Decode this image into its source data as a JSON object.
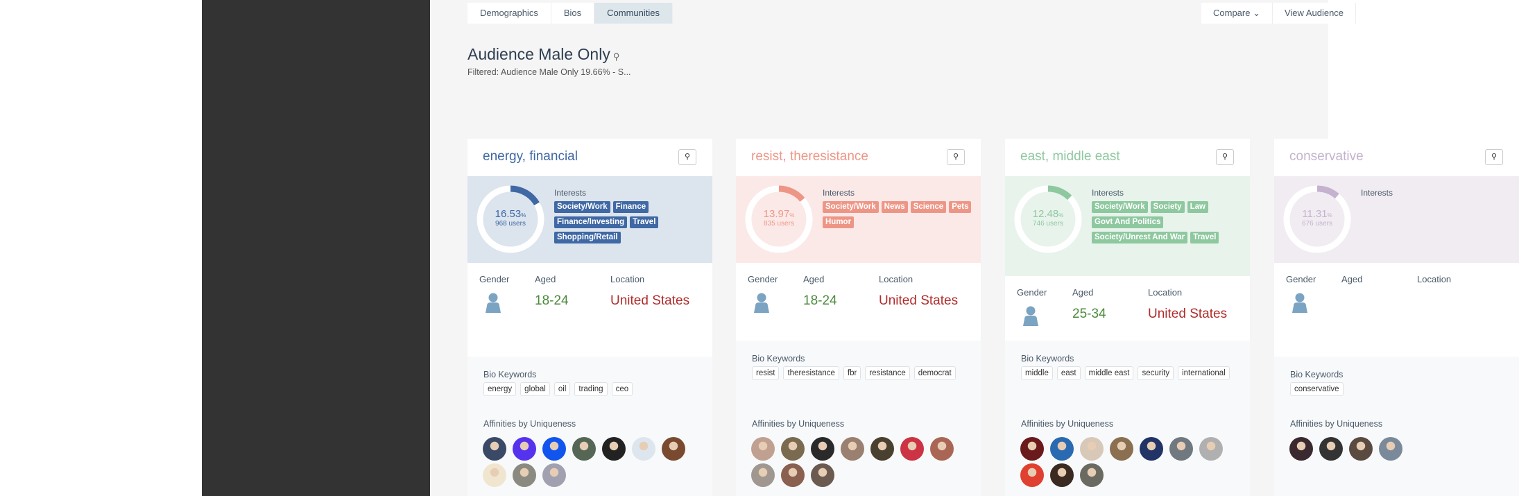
{
  "tabs": [
    {
      "label": "Demographics"
    },
    {
      "label": "Bios"
    },
    {
      "label": "Communities",
      "active": true
    }
  ],
  "actions": {
    "compare": "Compare ⌄",
    "view": "View Audience"
  },
  "header": {
    "title": "Audience Male Only",
    "title_icon": "zoom-icon",
    "subtitle": "Filtered: Audience Male Only 19.66% - S..."
  },
  "labels": {
    "interests": "Interests",
    "gender": "Gender",
    "aged": "Aged",
    "location": "Location",
    "bio": "Bio Keywords",
    "affinities": "Affinities by Uniqueness",
    "pct_unit": "%",
    "zoom": "⚲"
  },
  "colors": {
    "aged": "#4a8a3a",
    "location": "#b22c2c",
    "gender_icon": "#7ba3c2"
  },
  "cards": [
    {
      "title": "energy, financial",
      "accent": "#3f68a4",
      "band": "#dce4ee",
      "percent": 16.53,
      "percent_label": "16.53",
      "users": "968 users",
      "interests": [
        "Society/Work",
        "Finance",
        "Finance/Investing",
        "Travel",
        "Shopping/Retail"
      ],
      "aged": "18-24",
      "location": "United States",
      "keywords": [
        "energy",
        "global",
        "oil",
        "trading",
        "ceo"
      ],
      "avatars": [
        "#3a4a66",
        "#5533ee",
        "#1155ee",
        "#556655",
        "#222222",
        "#dde6ee",
        "#7a4a30",
        "#f0e6d0",
        "#8a8a80",
        "#a0a0b0"
      ]
    },
    {
      "title": "resist, theresistance",
      "accent": "#ee9686",
      "band": "#fbe9e8",
      "percent": 13.97,
      "percent_label": "13.97",
      "users": "835 users",
      "interests": [
        "Society/Work",
        "News",
        "Science",
        "Pets",
        "Humor"
      ],
      "aged": "18-24",
      "location": "United States",
      "keywords": [
        "resist",
        "theresistance",
        "fbr",
        "resistance",
        "democrat"
      ],
      "avatars": [
        "#c0a090",
        "#7a6a50",
        "#2a2a2a",
        "#9a8070",
        "#4a4030",
        "#cc3344",
        "#aa6655",
        "#a09890",
        "#8a6050",
        "#6a5a50"
      ]
    },
    {
      "title": "east, middle east",
      "accent": "#8ec89f",
      "band": "#e8f3ec",
      "percent": 12.48,
      "percent_label": "12.48",
      "users": "746 users",
      "interests": [
        "Society/Work",
        "Society",
        "Law",
        "Govt And Politics",
        "Society/Unrest And War",
        "Travel"
      ],
      "aged": "25-34",
      "location": "United States",
      "keywords": [
        "middle",
        "east",
        "middle east",
        "security",
        "international"
      ],
      "avatars": [
        "#6a1a1a",
        "#2a6ab0",
        "#d8c8b8",
        "#8a7050",
        "#223366",
        "#707880",
        "#b0b0b0",
        "#e04030",
        "#3a2a20",
        "#6a6a60"
      ]
    },
    {
      "title": "conservative",
      "accent": "#c4b2ce",
      "band": "#f1ecf2",
      "percent": 11.31,
      "percent_label": "11.31",
      "users": "676 users",
      "interests": [],
      "aged": "",
      "location": "",
      "keywords": [
        "conservative"
      ],
      "avatars": [
        "#3a2a30",
        "#333333",
        "#5a4a40",
        "#7a8a9a"
      ]
    }
  ]
}
